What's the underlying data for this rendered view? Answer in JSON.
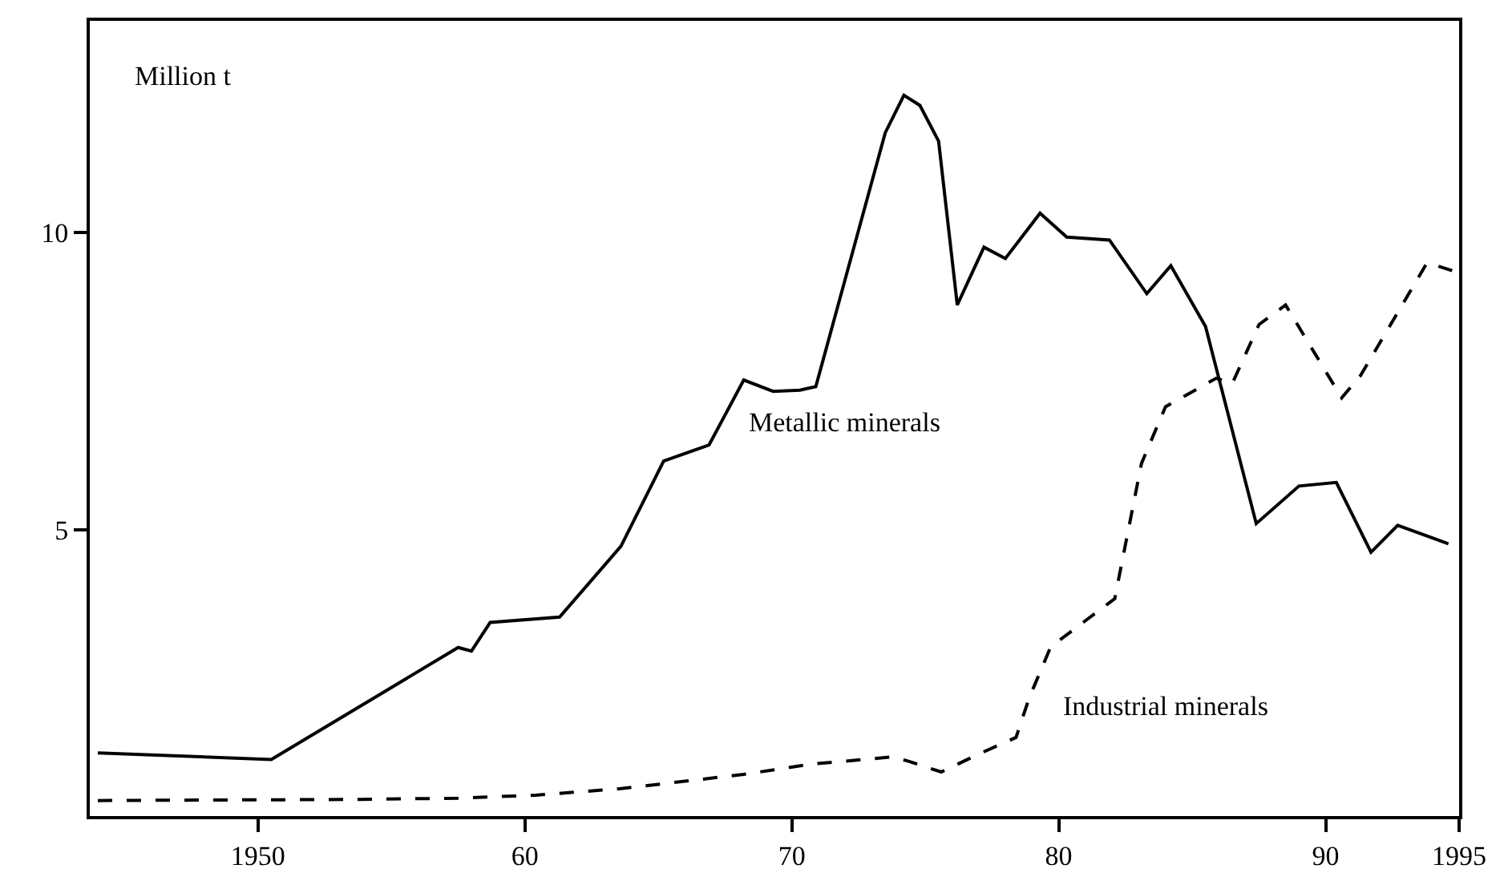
{
  "chart_data": {
    "type": "line",
    "ylabel": "Million t",
    "xlim": [
      1943.7,
      1995
    ],
    "ylim": [
      0.2,
      13.55
    ],
    "xticks": [
      1950,
      {
        "value": 1960,
        "label": "60"
      },
      {
        "value": 1970,
        "label": "70"
      },
      {
        "value": 1980,
        "label": "80"
      },
      {
        "value": 1990,
        "label": "90"
      },
      1995
    ],
    "yticks": [
      5,
      10
    ],
    "legend": false,
    "marker": "none",
    "series": [
      {
        "name": "Metallic minerals",
        "color": "#000000",
        "line_style": "solid",
        "x": [
          1944.0,
          1950.5,
          1957.5,
          1958.0,
          1958.7,
          1961.3,
          1963.6,
          1965.2,
          1966.9,
          1968.2,
          1969.3,
          1970.3,
          1970.9,
          1973.5,
          1974.2,
          1974.8,
          1975.5,
          1976.2,
          1977.2,
          1978.0,
          1979.3,
          1980.3,
          1981.9,
          1983.3,
          1984.2,
          1985.5,
          1987.4,
          1989.0,
          1990.4,
          1991.7,
          1992.7,
          1994.6
        ],
        "values": [
          1.26,
          1.15,
          3.03,
          2.97,
          3.45,
          3.54,
          4.73,
          6.16,
          6.43,
          7.52,
          7.33,
          7.35,
          7.41,
          11.67,
          12.3,
          12.13,
          11.53,
          8.78,
          9.75,
          9.56,
          10.32,
          9.92,
          9.87,
          8.97,
          9.44,
          8.42,
          5.11,
          5.74,
          5.8,
          4.63,
          5.08,
          4.77
        ]
      },
      {
        "name": "Industrial minerals",
        "color": "#000000",
        "line_style": "dashed",
        "x": [
          1944.0,
          1953.9,
          1957.5,
          1960.4,
          1963.6,
          1968.2,
          1970.7,
          1973.7,
          1974.3,
          1975.6,
          1977.0,
          1978.4,
          1978.9,
          1979.7,
          1982.1,
          1983.1,
          1984.0,
          1985.9,
          1986.5,
          1987.5,
          1988.5,
          1990.6,
          1991.3,
          1993.8,
          1995.0
        ],
        "values": [
          0.46,
          0.48,
          0.5,
          0.55,
          0.66,
          0.9,
          1.07,
          1.19,
          1.13,
          0.94,
          1.24,
          1.52,
          2.19,
          3.04,
          3.85,
          6.12,
          7.07,
          7.55,
          7.46,
          8.45,
          8.78,
          7.22,
          7.59,
          9.49,
          9.32
        ]
      }
    ]
  }
}
